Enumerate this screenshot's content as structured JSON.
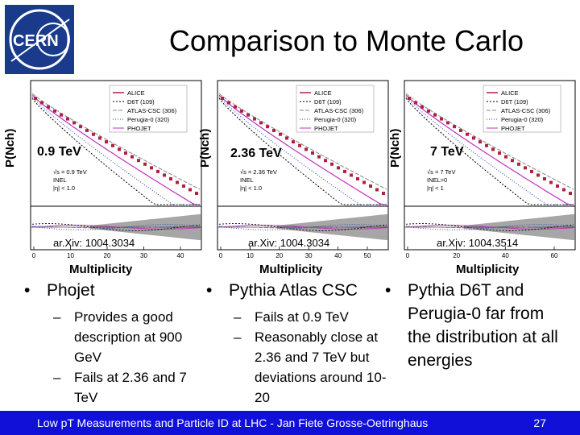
{
  "slide": {
    "title": "Comparison to Monte Carlo",
    "logo_text": "CERN",
    "colors": {
      "footer_bg": "#1010d8",
      "alice": "#b02040",
      "phojet": "#c030c0",
      "band": "#808080"
    }
  },
  "panels": [
    {
      "energy": "0.9 TeV",
      "arxiv": "ar.Xiv: 1004.3034",
      "multiplicity": "Multiplicity",
      "ylabel": "P(Nch)",
      "legend": [
        "ALICE",
        "D6T (109)",
        "ATLAS-CSC (306)",
        "Perugia-0 (320)",
        "PHOJET"
      ],
      "cuts": [
        "√s = 0.9 TeV",
        "INEL",
        "|η| < 1.0"
      ],
      "xticks": [
        "0",
        "10",
        "20",
        "30",
        "40"
      ]
    },
    {
      "energy": "2.36 TeV",
      "arxiv": "ar.Xiv: 1004.3034",
      "multiplicity": "Multiplicity",
      "ylabel": "P(Nch)",
      "legend": [
        "ALICE",
        "D6T (109)",
        "ATLAS-CSC (306)",
        "Perugia-0 (320)",
        "PHOJET"
      ],
      "cuts": [
        "√s = 2.36 TeV",
        "INEL",
        "|η| < 1.0"
      ],
      "xticks": [
        "0",
        "10",
        "20",
        "30",
        "40",
        "50"
      ]
    },
    {
      "energy": "7 TeV",
      "arxiv": "ar.Xiv: 1004.3514",
      "multiplicity": "Multiplicity",
      "ylabel": "P(Nch)",
      "legend": [
        "ALICE",
        "D6T (109)",
        "ATLAS-CSC (306)",
        "Perugia-0 (320)",
        "PHOJET"
      ],
      "cuts": [
        "√s = 7 TeV",
        "INEL>0",
        "|η| < 1"
      ],
      "xticks": [
        "0",
        "20",
        "40",
        "60"
      ]
    }
  ],
  "bullets": [
    {
      "text": "Phojet",
      "subs": [
        "Provides a good description at 900 GeV",
        "Fails at 2.36 and 7 TeV"
      ]
    },
    {
      "text": "Pythia Atlas CSC",
      "subs": [
        "Fails at 0.9 TeV",
        "Reasonably close at 2.36 and 7 TeV but deviations around 10-20"
      ]
    },
    {
      "text": "Pythia D6T and Perugia-0 far from the distribution at all energies",
      "subs": []
    }
  ],
  "footer": {
    "text": "Low pT Measurements and Particle ID at LHC - Jan Fiete Grosse-Oetringhaus",
    "page": "27"
  }
}
